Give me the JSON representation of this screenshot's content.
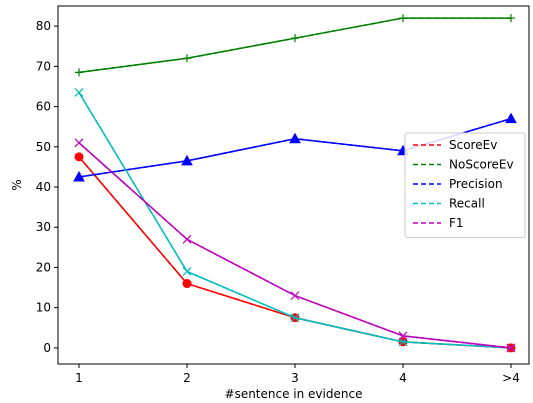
{
  "chart_data": {
    "type": "line",
    "title": "",
    "xlabel": "#sentence in evidence",
    "ylabel": "%",
    "categories": [
      "1",
      "2",
      "3",
      "4",
      ">4"
    ],
    "ylim": [
      -4,
      85
    ],
    "yticks": [
      0,
      10,
      20,
      30,
      40,
      50,
      60,
      70,
      80
    ],
    "legend_position": "center-right",
    "grid": false,
    "series": [
      {
        "name": "ScoreEv",
        "values": [
          47.5,
          16,
          7.5,
          1.5,
          0
        ],
        "color": "#ff0000",
        "style": "dashed",
        "marker": "circle"
      },
      {
        "name": "NoScoreEv",
        "values": [
          68.5,
          72,
          77,
          82,
          82
        ],
        "color": "#008000",
        "style": "dashed",
        "marker": "plus"
      },
      {
        "name": "Precision",
        "values": [
          42.5,
          46.5,
          52,
          49,
          57
        ],
        "color": "#0000ff",
        "style": "dashed",
        "marker": "triangle"
      },
      {
        "name": "Recall",
        "values": [
          63.5,
          19,
          7.5,
          1.5,
          0
        ],
        "color": "#00bfbf",
        "style": "dashed",
        "marker": "x"
      },
      {
        "name": "F1",
        "values": [
          51,
          27,
          13,
          3,
          0
        ],
        "color": "#bf00bf",
        "style": "dashed",
        "marker": "x"
      }
    ]
  }
}
